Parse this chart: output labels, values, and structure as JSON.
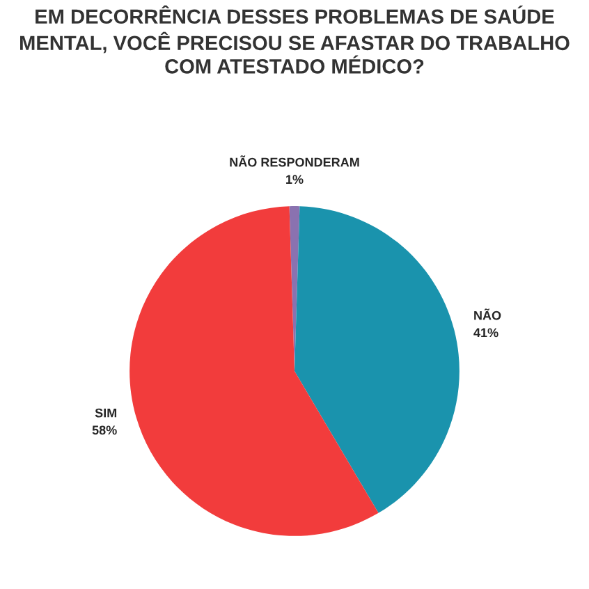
{
  "chart_data": {
    "type": "pie",
    "title": "EM DECORRÊNCIA DESSES PROBLEMAS DE SAÚDE MENTAL, VOCÊ PRECISOU SE AFASTAR DO TRABALHO COM ATESTADO MÉDICO?",
    "categories": [
      "NÃO RESPONDERAM",
      "NÃO",
      "SIM"
    ],
    "values": [
      1,
      41,
      58
    ],
    "value_labels": [
      "1%",
      "41%",
      "58%"
    ],
    "colors": [
      "#8a72b0",
      "#1a93ad",
      "#f23c3c"
    ],
    "legend": false
  }
}
